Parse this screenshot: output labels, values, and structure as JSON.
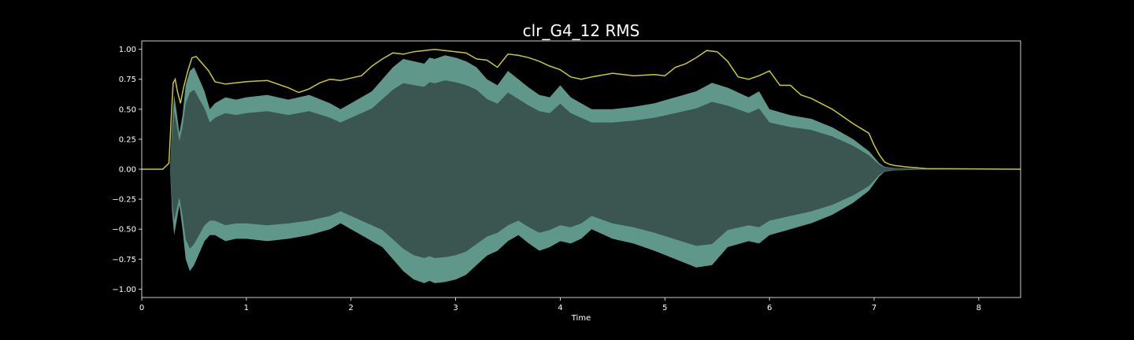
{
  "chart_data": {
    "type": "area",
    "title": "clr_G4_12 RMS",
    "xlabel": "Time",
    "ylabel": "",
    "xlim": [
      0,
      8.4
    ],
    "ylim": [
      -1.07,
      1.07
    ],
    "xticks": [
      0,
      1,
      2,
      3,
      4,
      5,
      6,
      7,
      8
    ],
    "xtick_labels": [
      "0",
      "1",
      "2",
      "3",
      "4",
      "5",
      "6",
      "7",
      "8"
    ],
    "yticks": [
      1.0,
      0.75,
      0.5,
      0.25,
      0.0,
      -0.25,
      -0.5,
      -0.75,
      -1.0
    ],
    "ytick_labels": [
      "1.00",
      "0.75",
      "0.50",
      "0.25",
      "0.00",
      "−0.25",
      "−0.50",
      "−0.75",
      "−1.00"
    ],
    "grid": false,
    "colors": {
      "background": "#000000",
      "waveform_fill": "#69a89a",
      "waveform_core": "#3b5550",
      "rms_line": "#c8c832",
      "axes": "#ffffff"
    },
    "series": [
      {
        "kind": "waveform_envelope",
        "x": [
          0,
          0.27,
          0.29,
          0.31,
          0.33,
          0.36,
          0.39,
          0.42,
          0.46,
          0.5,
          0.55,
          0.6,
          0.65,
          0.7,
          0.8,
          0.9,
          1.0,
          1.2,
          1.4,
          1.6,
          1.8,
          1.9,
          2.0,
          2.1,
          2.2,
          2.3,
          2.4,
          2.5,
          2.6,
          2.7,
          2.75,
          2.8,
          2.9,
          3.0,
          3.1,
          3.2,
          3.3,
          3.4,
          3.5,
          3.6,
          3.7,
          3.8,
          3.9,
          4.0,
          4.1,
          4.2,
          4.3,
          4.5,
          4.7,
          4.9,
          5.1,
          5.3,
          5.45,
          5.6,
          5.8,
          5.9,
          6.0,
          6.2,
          6.4,
          6.6,
          6.8,
          6.95,
          7.05,
          7.1,
          7.2,
          7.4,
          7.6,
          8.0,
          8.4
        ],
        "upper": [
          0.0,
          0.0,
          0.35,
          0.62,
          0.5,
          0.3,
          0.45,
          0.7,
          0.82,
          0.85,
          0.75,
          0.65,
          0.5,
          0.55,
          0.6,
          0.58,
          0.6,
          0.62,
          0.58,
          0.62,
          0.55,
          0.5,
          0.55,
          0.6,
          0.65,
          0.75,
          0.85,
          0.92,
          0.9,
          0.88,
          0.93,
          0.92,
          0.95,
          0.93,
          0.9,
          0.85,
          0.75,
          0.7,
          0.82,
          0.75,
          0.68,
          0.62,
          0.6,
          0.7,
          0.6,
          0.55,
          0.5,
          0.5,
          0.52,
          0.55,
          0.6,
          0.65,
          0.72,
          0.68,
          0.6,
          0.65,
          0.5,
          0.45,
          0.42,
          0.35,
          0.25,
          0.15,
          0.05,
          0.02,
          0.01,
          0.005,
          0.002,
          0.0,
          0.0
        ],
        "lower": [
          0.0,
          0.0,
          -0.35,
          -0.55,
          -0.45,
          -0.3,
          -0.5,
          -0.75,
          -0.85,
          -0.8,
          -0.7,
          -0.6,
          -0.55,
          -0.55,
          -0.6,
          -0.58,
          -0.58,
          -0.6,
          -0.58,
          -0.55,
          -0.5,
          -0.45,
          -0.5,
          -0.55,
          -0.6,
          -0.65,
          -0.75,
          -0.85,
          -0.92,
          -0.95,
          -0.93,
          -0.95,
          -0.94,
          -0.92,
          -0.88,
          -0.8,
          -0.72,
          -0.68,
          -0.6,
          -0.55,
          -0.62,
          -0.68,
          -0.65,
          -0.6,
          -0.62,
          -0.58,
          -0.5,
          -0.58,
          -0.62,
          -0.68,
          -0.75,
          -0.82,
          -0.8,
          -0.65,
          -0.6,
          -0.62,
          -0.55,
          -0.5,
          -0.45,
          -0.38,
          -0.28,
          -0.18,
          -0.06,
          -0.02,
          -0.01,
          -0.005,
          -0.002,
          0.0,
          0.0
        ]
      },
      {
        "kind": "rms_line",
        "x": [
          0,
          0.2,
          0.26,
          0.28,
          0.3,
          0.32,
          0.34,
          0.37,
          0.4,
          0.44,
          0.48,
          0.52,
          0.56,
          0.6,
          0.64,
          0.7,
          0.8,
          0.9,
          1.0,
          1.2,
          1.4,
          1.5,
          1.6,
          1.7,
          1.8,
          1.9,
          2.0,
          2.1,
          2.2,
          2.3,
          2.4,
          2.5,
          2.6,
          2.7,
          2.8,
          2.9,
          3.0,
          3.1,
          3.2,
          3.3,
          3.4,
          3.5,
          3.6,
          3.7,
          3.8,
          3.9,
          4.0,
          4.1,
          4.2,
          4.3,
          4.5,
          4.7,
          4.9,
          5.0,
          5.1,
          5.2,
          5.3,
          5.4,
          5.5,
          5.6,
          5.7,
          5.8,
          5.9,
          6.0,
          6.1,
          6.2,
          6.3,
          6.4,
          6.6,
          6.8,
          6.95,
          7.0,
          7.05,
          7.1,
          7.15,
          7.2,
          7.3,
          7.5,
          7.8,
          8.1,
          8.4
        ],
        "y": [
          0.0,
          0.0,
          0.05,
          0.4,
          0.72,
          0.75,
          0.65,
          0.55,
          0.68,
          0.82,
          0.93,
          0.94,
          0.9,
          0.86,
          0.82,
          0.73,
          0.71,
          0.72,
          0.73,
          0.74,
          0.68,
          0.64,
          0.67,
          0.72,
          0.75,
          0.74,
          0.76,
          0.78,
          0.86,
          0.92,
          0.97,
          0.96,
          0.98,
          0.99,
          1.0,
          0.99,
          0.98,
          0.97,
          0.92,
          0.91,
          0.85,
          0.96,
          0.95,
          0.93,
          0.9,
          0.86,
          0.83,
          0.77,
          0.75,
          0.77,
          0.8,
          0.78,
          0.79,
          0.78,
          0.85,
          0.88,
          0.93,
          0.99,
          0.98,
          0.9,
          0.77,
          0.75,
          0.78,
          0.82,
          0.7,
          0.7,
          0.62,
          0.59,
          0.5,
          0.38,
          0.3,
          0.2,
          0.12,
          0.06,
          0.04,
          0.03,
          0.02,
          0.005,
          0.003,
          0.001,
          0.0
        ]
      }
    ]
  }
}
